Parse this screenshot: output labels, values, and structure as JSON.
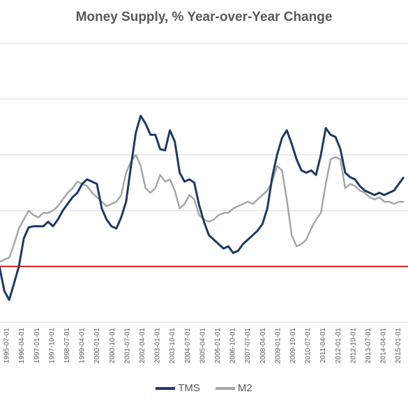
{
  "chart_data": {
    "type": "line",
    "title": "Money Supply, % Year-over-Year Change",
    "xlabel": "",
    "ylabel": "",
    "ylim": [
      -5,
      20
    ],
    "grid": true,
    "legend_position": "bottom",
    "reference_line": {
      "y": 0,
      "color": "#e0262a"
    },
    "x_ticks": [
      "1995-07-01",
      "1996-04-01",
      "1997-01-01",
      "1997-10-01",
      "1998-07-01",
      "1999-04-01",
      "2000-01-01",
      "2000-10-01",
      "2001-07-01",
      "2002-04-01",
      "2003-01-01",
      "2003-10-01",
      "2004-07-01",
      "2005-04-01",
      "2006-01-01",
      "2006-10-01",
      "2007-07-01",
      "2008-04-01",
      "2009-01-01",
      "2009-10-01",
      "2010-07-01",
      "2011-04-01",
      "2012-01-01",
      "2012-10-01",
      "2013-07-01",
      "2014-04-01",
      "2015-01-01"
    ],
    "series": [
      {
        "name": "TMS",
        "color": "#1f3864",
        "points": [
          [
            "1994-10",
            0.0
          ],
          [
            "1995-01",
            -2.2
          ],
          [
            "1995-04",
            -3.0
          ],
          [
            "1995-07",
            -1.5
          ],
          [
            "1995-10",
            0.0
          ],
          [
            "1996-01",
            2.5
          ],
          [
            "1996-04",
            3.5
          ],
          [
            "1996-07",
            3.6
          ],
          [
            "1996-10",
            3.6
          ],
          [
            "1997-01",
            3.6
          ],
          [
            "1997-04",
            4.0
          ],
          [
            "1997-07",
            3.6
          ],
          [
            "1997-10",
            4.2
          ],
          [
            "1998-01",
            5.0
          ],
          [
            "1998-04",
            5.6
          ],
          [
            "1998-07",
            6.2
          ],
          [
            "1998-10",
            6.6
          ],
          [
            "1999-01",
            7.4
          ],
          [
            "1999-04",
            7.8
          ],
          [
            "1999-07",
            7.6
          ],
          [
            "1999-10",
            7.4
          ],
          [
            "2000-01",
            5.2
          ],
          [
            "2000-04",
            4.2
          ],
          [
            "2000-07",
            3.6
          ],
          [
            "2000-10",
            3.4
          ],
          [
            "2001-01",
            4.4
          ],
          [
            "2001-04",
            5.8
          ],
          [
            "2001-07",
            9.0
          ],
          [
            "2001-10",
            12.0
          ],
          [
            "2002-01",
            13.5
          ],
          [
            "2002-04",
            12.8
          ],
          [
            "2002-07",
            11.8
          ],
          [
            "2002-10",
            11.8
          ],
          [
            "2003-01",
            10.5
          ],
          [
            "2003-04",
            10.4
          ],
          [
            "2003-07",
            12.2
          ],
          [
            "2003-10",
            11.2
          ],
          [
            "2004-01",
            8.4
          ],
          [
            "2004-04",
            7.6
          ],
          [
            "2004-07",
            7.8
          ],
          [
            "2004-10",
            7.5
          ],
          [
            "2005-01",
            5.5
          ],
          [
            "2005-04",
            4.0
          ],
          [
            "2005-07",
            2.8
          ],
          [
            "2005-10",
            2.4
          ],
          [
            "2006-01",
            2.0
          ],
          [
            "2006-04",
            1.6
          ],
          [
            "2006-07",
            1.8
          ],
          [
            "2006-10",
            1.2
          ],
          [
            "2007-01",
            1.4
          ],
          [
            "2007-04",
            2.0
          ],
          [
            "2007-07",
            2.4
          ],
          [
            "2007-10",
            2.8
          ],
          [
            "2008-01",
            3.2
          ],
          [
            "2008-04",
            3.8
          ],
          [
            "2008-07",
            5.2
          ],
          [
            "2008-10",
            8.0
          ],
          [
            "2009-01",
            10.0
          ],
          [
            "2009-04",
            11.5
          ],
          [
            "2009-07",
            12.2
          ],
          [
            "2009-10",
            11.0
          ],
          [
            "2010-01",
            9.6
          ],
          [
            "2010-04",
            8.6
          ],
          [
            "2010-07",
            8.4
          ],
          [
            "2010-10",
            8.6
          ],
          [
            "2011-01",
            8.2
          ],
          [
            "2011-04",
            10.0
          ],
          [
            "2011-07",
            12.4
          ],
          [
            "2011-10",
            11.8
          ],
          [
            "2012-01",
            11.6
          ],
          [
            "2012-04",
            10.5
          ],
          [
            "2012-07",
            8.4
          ],
          [
            "2012-10",
            8.0
          ],
          [
            "2013-01",
            7.8
          ],
          [
            "2013-04",
            7.2
          ],
          [
            "2013-07",
            6.8
          ],
          [
            "2013-10",
            6.6
          ],
          [
            "2014-01",
            6.4
          ],
          [
            "2014-04",
            6.6
          ],
          [
            "2014-07",
            6.4
          ],
          [
            "2014-10",
            6.6
          ],
          [
            "2015-01",
            6.8
          ],
          [
            "2015-04",
            7.4
          ],
          [
            "2015-07",
            8.0
          ]
        ]
      },
      {
        "name": "M2",
        "color": "#a6a6a6",
        "points": [
          [
            "1994-10",
            0.4
          ],
          [
            "1995-01",
            0.6
          ],
          [
            "1995-04",
            0.8
          ],
          [
            "1995-07",
            2.0
          ],
          [
            "1995-10",
            3.4
          ],
          [
            "1996-01",
            4.2
          ],
          [
            "1996-04",
            5.0
          ],
          [
            "1996-07",
            4.6
          ],
          [
            "1996-10",
            4.4
          ],
          [
            "1997-01",
            4.8
          ],
          [
            "1997-04",
            4.8
          ],
          [
            "1997-07",
            5.0
          ],
          [
            "1997-10",
            5.4
          ],
          [
            "1998-01",
            6.0
          ],
          [
            "1998-04",
            6.6
          ],
          [
            "1998-07",
            7.0
          ],
          [
            "1998-10",
            7.6
          ],
          [
            "1999-01",
            7.4
          ],
          [
            "1999-04",
            7.2
          ],
          [
            "1999-07",
            6.6
          ],
          [
            "1999-10",
            6.2
          ],
          [
            "2000-01",
            5.8
          ],
          [
            "2000-04",
            5.4
          ],
          [
            "2000-07",
            5.6
          ],
          [
            "2000-10",
            5.8
          ],
          [
            "2001-01",
            6.4
          ],
          [
            "2001-04",
            8.4
          ],
          [
            "2001-07",
            9.4
          ],
          [
            "2001-10",
            10.0
          ],
          [
            "2002-01",
            9.0
          ],
          [
            "2002-04",
            7.0
          ],
          [
            "2002-07",
            6.6
          ],
          [
            "2002-10",
            7.0
          ],
          [
            "2003-01",
            8.2
          ],
          [
            "2003-04",
            7.6
          ],
          [
            "2003-07",
            7.8
          ],
          [
            "2003-10",
            6.8
          ],
          [
            "2004-01",
            5.2
          ],
          [
            "2004-04",
            5.6
          ],
          [
            "2004-07",
            6.4
          ],
          [
            "2004-10",
            6.0
          ],
          [
            "2005-01",
            4.6
          ],
          [
            "2005-04",
            4.2
          ],
          [
            "2005-07",
            4.0
          ],
          [
            "2005-10",
            4.2
          ],
          [
            "2006-01",
            4.6
          ],
          [
            "2006-04",
            4.8
          ],
          [
            "2006-07",
            4.8
          ],
          [
            "2006-10",
            5.2
          ],
          [
            "2007-01",
            5.4
          ],
          [
            "2007-04",
            5.6
          ],
          [
            "2007-07",
            5.8
          ],
          [
            "2007-10",
            5.6
          ],
          [
            "2008-01",
            6.0
          ],
          [
            "2008-04",
            6.4
          ],
          [
            "2008-07",
            6.8
          ],
          [
            "2008-10",
            7.6
          ],
          [
            "2009-01",
            9.0
          ],
          [
            "2009-04",
            8.6
          ],
          [
            "2009-07",
            6.0
          ],
          [
            "2009-10",
            2.8
          ],
          [
            "2010-01",
            1.8
          ],
          [
            "2010-04",
            2.0
          ],
          [
            "2010-07",
            2.4
          ],
          [
            "2010-10",
            3.4
          ],
          [
            "2011-01",
            4.2
          ],
          [
            "2011-04",
            4.8
          ],
          [
            "2011-07",
            7.4
          ],
          [
            "2011-10",
            9.6
          ],
          [
            "2012-01",
            9.8
          ],
          [
            "2012-04",
            9.6
          ],
          [
            "2012-07",
            7.0
          ],
          [
            "2012-10",
            7.4
          ],
          [
            "2013-01",
            7.2
          ],
          [
            "2013-04",
            6.8
          ],
          [
            "2013-07",
            6.6
          ],
          [
            "2013-10",
            6.2
          ],
          [
            "2014-01",
            6.0
          ],
          [
            "2014-04",
            6.2
          ],
          [
            "2014-07",
            5.8
          ],
          [
            "2014-10",
            5.8
          ],
          [
            "2015-01",
            5.6
          ],
          [
            "2015-04",
            5.8
          ],
          [
            "2015-07",
            5.8
          ]
        ]
      }
    ]
  }
}
